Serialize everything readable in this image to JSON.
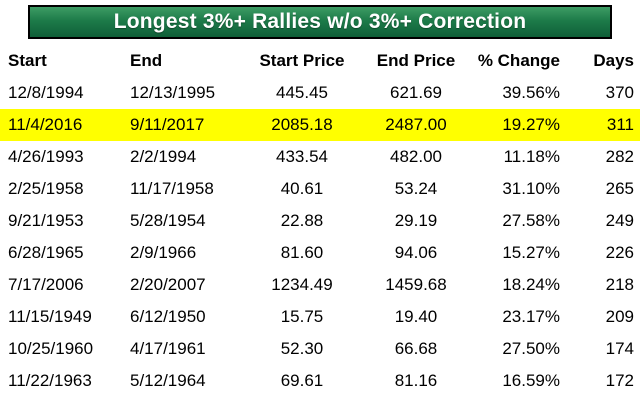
{
  "title": "Longest 3%+ Rallies w/o 3%+ Correction",
  "colors": {
    "header_green": "#1d7b49",
    "header_green_dark": "#0f5f38",
    "highlight_yellow": "#ffff00",
    "title_text": "#ffffff",
    "body_text": "#000000"
  },
  "chart_data": {
    "type": "table",
    "title": "Longest 3%+ Rallies w/o 3%+ Correction",
    "columns": [
      "Start",
      "End",
      "Start Price",
      "End Price",
      "% Change",
      "Days"
    ],
    "rows": [
      [
        "12/8/1994",
        "12/13/1995",
        "445.45",
        "621.69",
        "39.56%",
        "370"
      ],
      [
        "11/4/2016",
        "9/11/2017",
        "2085.18",
        "2487.00",
        "19.27%",
        "311"
      ],
      [
        "4/26/1993",
        "2/2/1994",
        "433.54",
        "482.00",
        "11.18%",
        "282"
      ],
      [
        "2/25/1958",
        "11/17/1958",
        "40.61",
        "53.24",
        "31.10%",
        "265"
      ],
      [
        "9/21/1953",
        "5/28/1954",
        "22.88",
        "29.19",
        "27.58%",
        "249"
      ],
      [
        "6/28/1965",
        "2/9/1966",
        "81.60",
        "94.06",
        "15.27%",
        "226"
      ],
      [
        "7/17/2006",
        "2/20/2007",
        "1234.49",
        "1459.68",
        "18.24%",
        "218"
      ],
      [
        "11/15/1949",
        "6/12/1950",
        "15.75",
        "19.40",
        "23.17%",
        "209"
      ],
      [
        "10/25/1960",
        "4/17/1961",
        "52.30",
        "66.68",
        "27.50%",
        "174"
      ],
      [
        "11/22/1963",
        "5/12/1964",
        "69.61",
        "81.16",
        "16.59%",
        "172"
      ]
    ],
    "highlighted_row_index": 1,
    "highlighted_row_note": "row shown with yellow background"
  }
}
